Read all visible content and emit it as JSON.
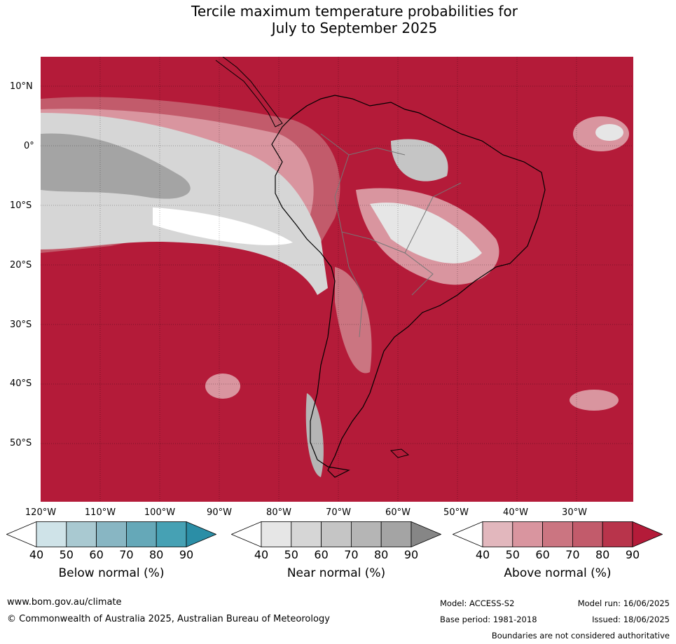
{
  "title": {
    "line1": "Tercile maximum temperature probabilities for",
    "line2": "July to September 2025"
  },
  "map": {
    "lat_labels": [
      "10°N",
      "0°",
      "10°S",
      "20°S",
      "30°S",
      "40°S",
      "50°S"
    ],
    "lon_labels": [
      "120°W",
      "110°W",
      "100°W",
      "90°W",
      "80°W",
      "70°W",
      "60°W",
      "50°W",
      "40°W",
      "30°W"
    ],
    "colors": {
      "above_background": "#b41b39",
      "ocean_border": "#9e9e9e",
      "coast": "#000000"
    }
  },
  "legends": [
    {
      "label": "Below normal (%)",
      "ticks": [
        "40",
        "50",
        "60",
        "70",
        "80",
        "90"
      ],
      "colors": [
        "#ffffff",
        "#cfe3e8",
        "#a9c9d1",
        "#88b6c3",
        "#65a8b8",
        "#46a1b4",
        "#2b8ea6"
      ]
    },
    {
      "label": "Near normal (%)",
      "ticks": [
        "40",
        "50",
        "60",
        "70",
        "80",
        "90"
      ],
      "colors": [
        "#ffffff",
        "#e6e6e6",
        "#d6d6d6",
        "#c5c5c5",
        "#b5b5b5",
        "#a4a4a4",
        "#868686"
      ]
    },
    {
      "label": "Above normal (%)",
      "ticks": [
        "40",
        "50",
        "60",
        "70",
        "80",
        "90"
      ],
      "colors": [
        "#ffffff",
        "#e2b7bd",
        "#d9959f",
        "#cb7581",
        "#c25b6b",
        "#b8344b",
        "#b41b39"
      ]
    }
  ],
  "footer": {
    "website": "www.bom.gov.au/climate",
    "copyright": "© Commonwealth of Australia 2025, Australian Bureau of Meteorology",
    "model": "Model: ACCESS-S2",
    "base_period": "Base period: 1981-2018",
    "model_run": "Model run: 16/06/2025",
    "issued": "Issued: 18/06/2025",
    "disclaimer": "Boundaries are not considered authoritative"
  }
}
